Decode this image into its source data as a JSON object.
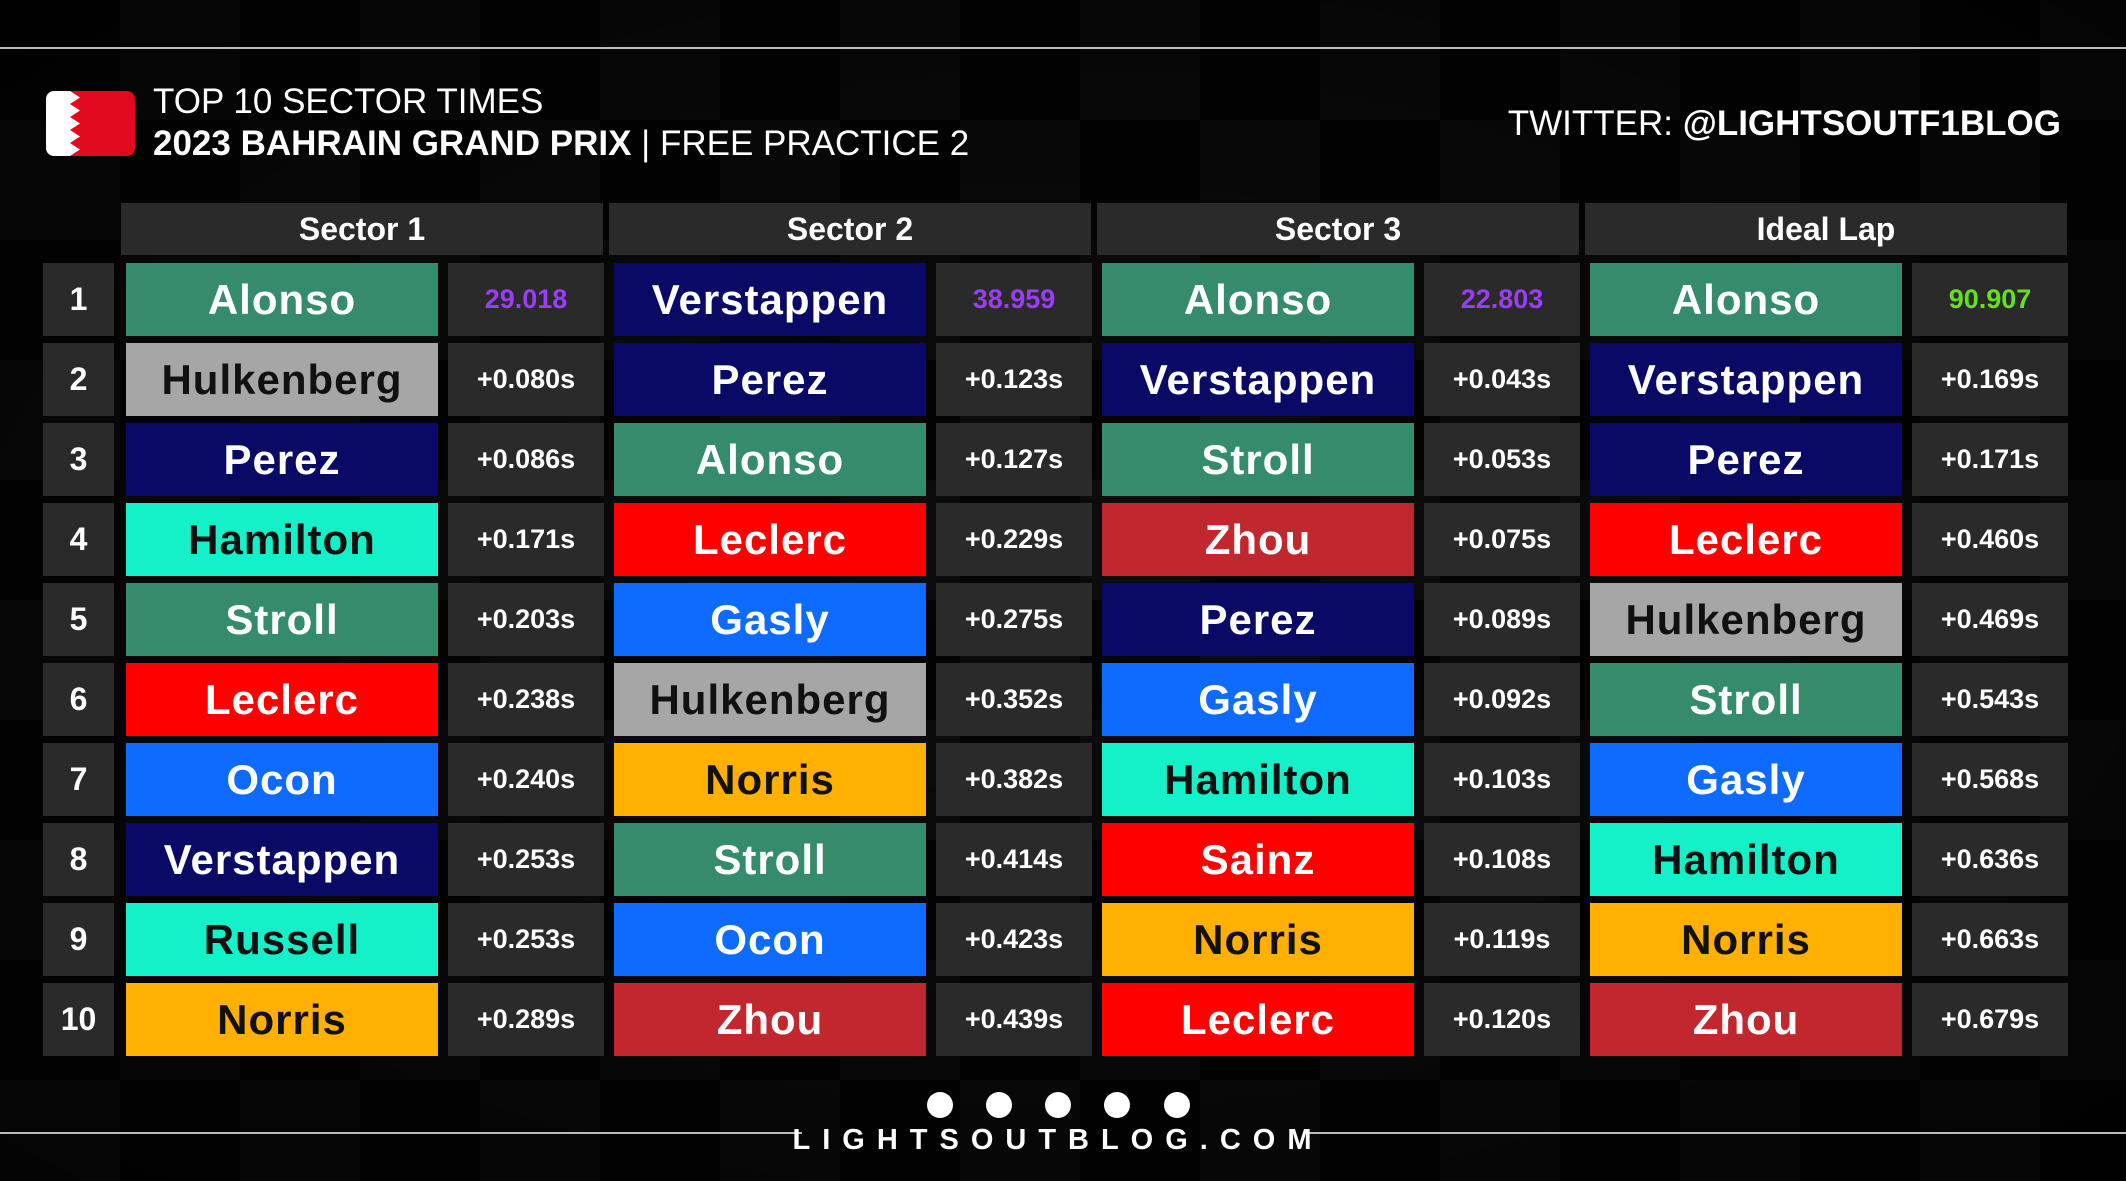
{
  "header": {
    "title": "TOP 10 SECTOR TIMES",
    "subtitle_bold": "2023 BAHRAIN GRAND PRIX",
    "subtitle_rest": "| FREE PRACTICE 2",
    "twitter_label": "TWITTER:",
    "twitter_handle": "@LIGHTSOUTF1BLOG"
  },
  "table": {
    "positions": [
      "1",
      "2",
      "3",
      "4",
      "5",
      "6",
      "7",
      "8",
      "9",
      "10"
    ],
    "sectors": [
      {
        "name": "Sector 1",
        "best_color": "#9b3cff",
        "entries": [
          {
            "driver": "Alonso",
            "time": "29.018",
            "color": "#358c6c"
          },
          {
            "driver": "Hulkenberg",
            "time": "+0.080s",
            "color": "#a6a6a6"
          },
          {
            "driver": "Perez",
            "time": "+0.086s",
            "color": "#0a0a66"
          },
          {
            "driver": "Hamilton",
            "time": "+0.171s",
            "color": "#14f0c8"
          },
          {
            "driver": "Stroll",
            "time": "+0.203s",
            "color": "#358c6c"
          },
          {
            "driver": "Leclerc",
            "time": "+0.238s",
            "color": "#ff0000"
          },
          {
            "driver": "Ocon",
            "time": "+0.240s",
            "color": "#0f6bff"
          },
          {
            "driver": "Verstappen",
            "time": "+0.253s",
            "color": "#0a0a66"
          },
          {
            "driver": "Russell",
            "time": "+0.253s",
            "color": "#14f0c8"
          },
          {
            "driver": "Norris",
            "time": "+0.289s",
            "color": "#ffb000"
          }
        ]
      },
      {
        "name": "Sector 2",
        "best_color": "#9b3cff",
        "entries": [
          {
            "driver": "Verstappen",
            "time": "38.959",
            "color": "#0a0a66"
          },
          {
            "driver": "Perez",
            "time": "+0.123s",
            "color": "#0a0a66"
          },
          {
            "driver": "Alonso",
            "time": "+0.127s",
            "color": "#358c6c"
          },
          {
            "driver": "Leclerc",
            "time": "+0.229s",
            "color": "#ff0000"
          },
          {
            "driver": "Gasly",
            "time": "+0.275s",
            "color": "#0f6bff"
          },
          {
            "driver": "Hulkenberg",
            "time": "+0.352s",
            "color": "#a6a6a6"
          },
          {
            "driver": "Norris",
            "time": "+0.382s",
            "color": "#ffb000"
          },
          {
            "driver": "Stroll",
            "time": "+0.414s",
            "color": "#358c6c"
          },
          {
            "driver": "Ocon",
            "time": "+0.423s",
            "color": "#0f6bff"
          },
          {
            "driver": "Zhou",
            "time": "+0.439s",
            "color": "#c0282d"
          }
        ]
      },
      {
        "name": "Sector 3",
        "best_color": "#9b3cff",
        "entries": [
          {
            "driver": "Alonso",
            "time": "22.803",
            "color": "#358c6c"
          },
          {
            "driver": "Verstappen",
            "time": "+0.043s",
            "color": "#0a0a66"
          },
          {
            "driver": "Stroll",
            "time": "+0.053s",
            "color": "#358c6c"
          },
          {
            "driver": "Zhou",
            "time": "+0.075s",
            "color": "#c0282d"
          },
          {
            "driver": "Perez",
            "time": "+0.089s",
            "color": "#0a0a66"
          },
          {
            "driver": "Gasly",
            "time": "+0.092s",
            "color": "#0f6bff"
          },
          {
            "driver": "Hamilton",
            "time": "+0.103s",
            "color": "#14f0c8"
          },
          {
            "driver": "Sainz",
            "time": "+0.108s",
            "color": "#ff0000"
          },
          {
            "driver": "Norris",
            "time": "+0.119s",
            "color": "#ffb000"
          },
          {
            "driver": "Leclerc",
            "time": "+0.120s",
            "color": "#ff0000"
          }
        ]
      },
      {
        "name": "Ideal Lap",
        "best_color": "#66e01a",
        "entries": [
          {
            "driver": "Alonso",
            "time": "90.907",
            "color": "#358c6c"
          },
          {
            "driver": "Verstappen",
            "time": "+0.169s",
            "color": "#0a0a66"
          },
          {
            "driver": "Perez",
            "time": "+0.171s",
            "color": "#0a0a66"
          },
          {
            "driver": "Leclerc",
            "time": "+0.460s",
            "color": "#ff0000"
          },
          {
            "driver": "Hulkenberg",
            "time": "+0.469s",
            "color": "#a6a6a6"
          },
          {
            "driver": "Stroll",
            "time": "+0.543s",
            "color": "#358c6c"
          },
          {
            "driver": "Gasly",
            "time": "+0.568s",
            "color": "#0f6bff"
          },
          {
            "driver": "Hamilton",
            "time": "+0.636s",
            "color": "#14f0c8"
          },
          {
            "driver": "Norris",
            "time": "+0.663s",
            "color": "#ffb000"
          },
          {
            "driver": "Zhou",
            "time": "+0.679s",
            "color": "#c0282d"
          }
        ]
      }
    ]
  },
  "footer": {
    "site": "LIGHTSOUTBLOG.COM"
  }
}
